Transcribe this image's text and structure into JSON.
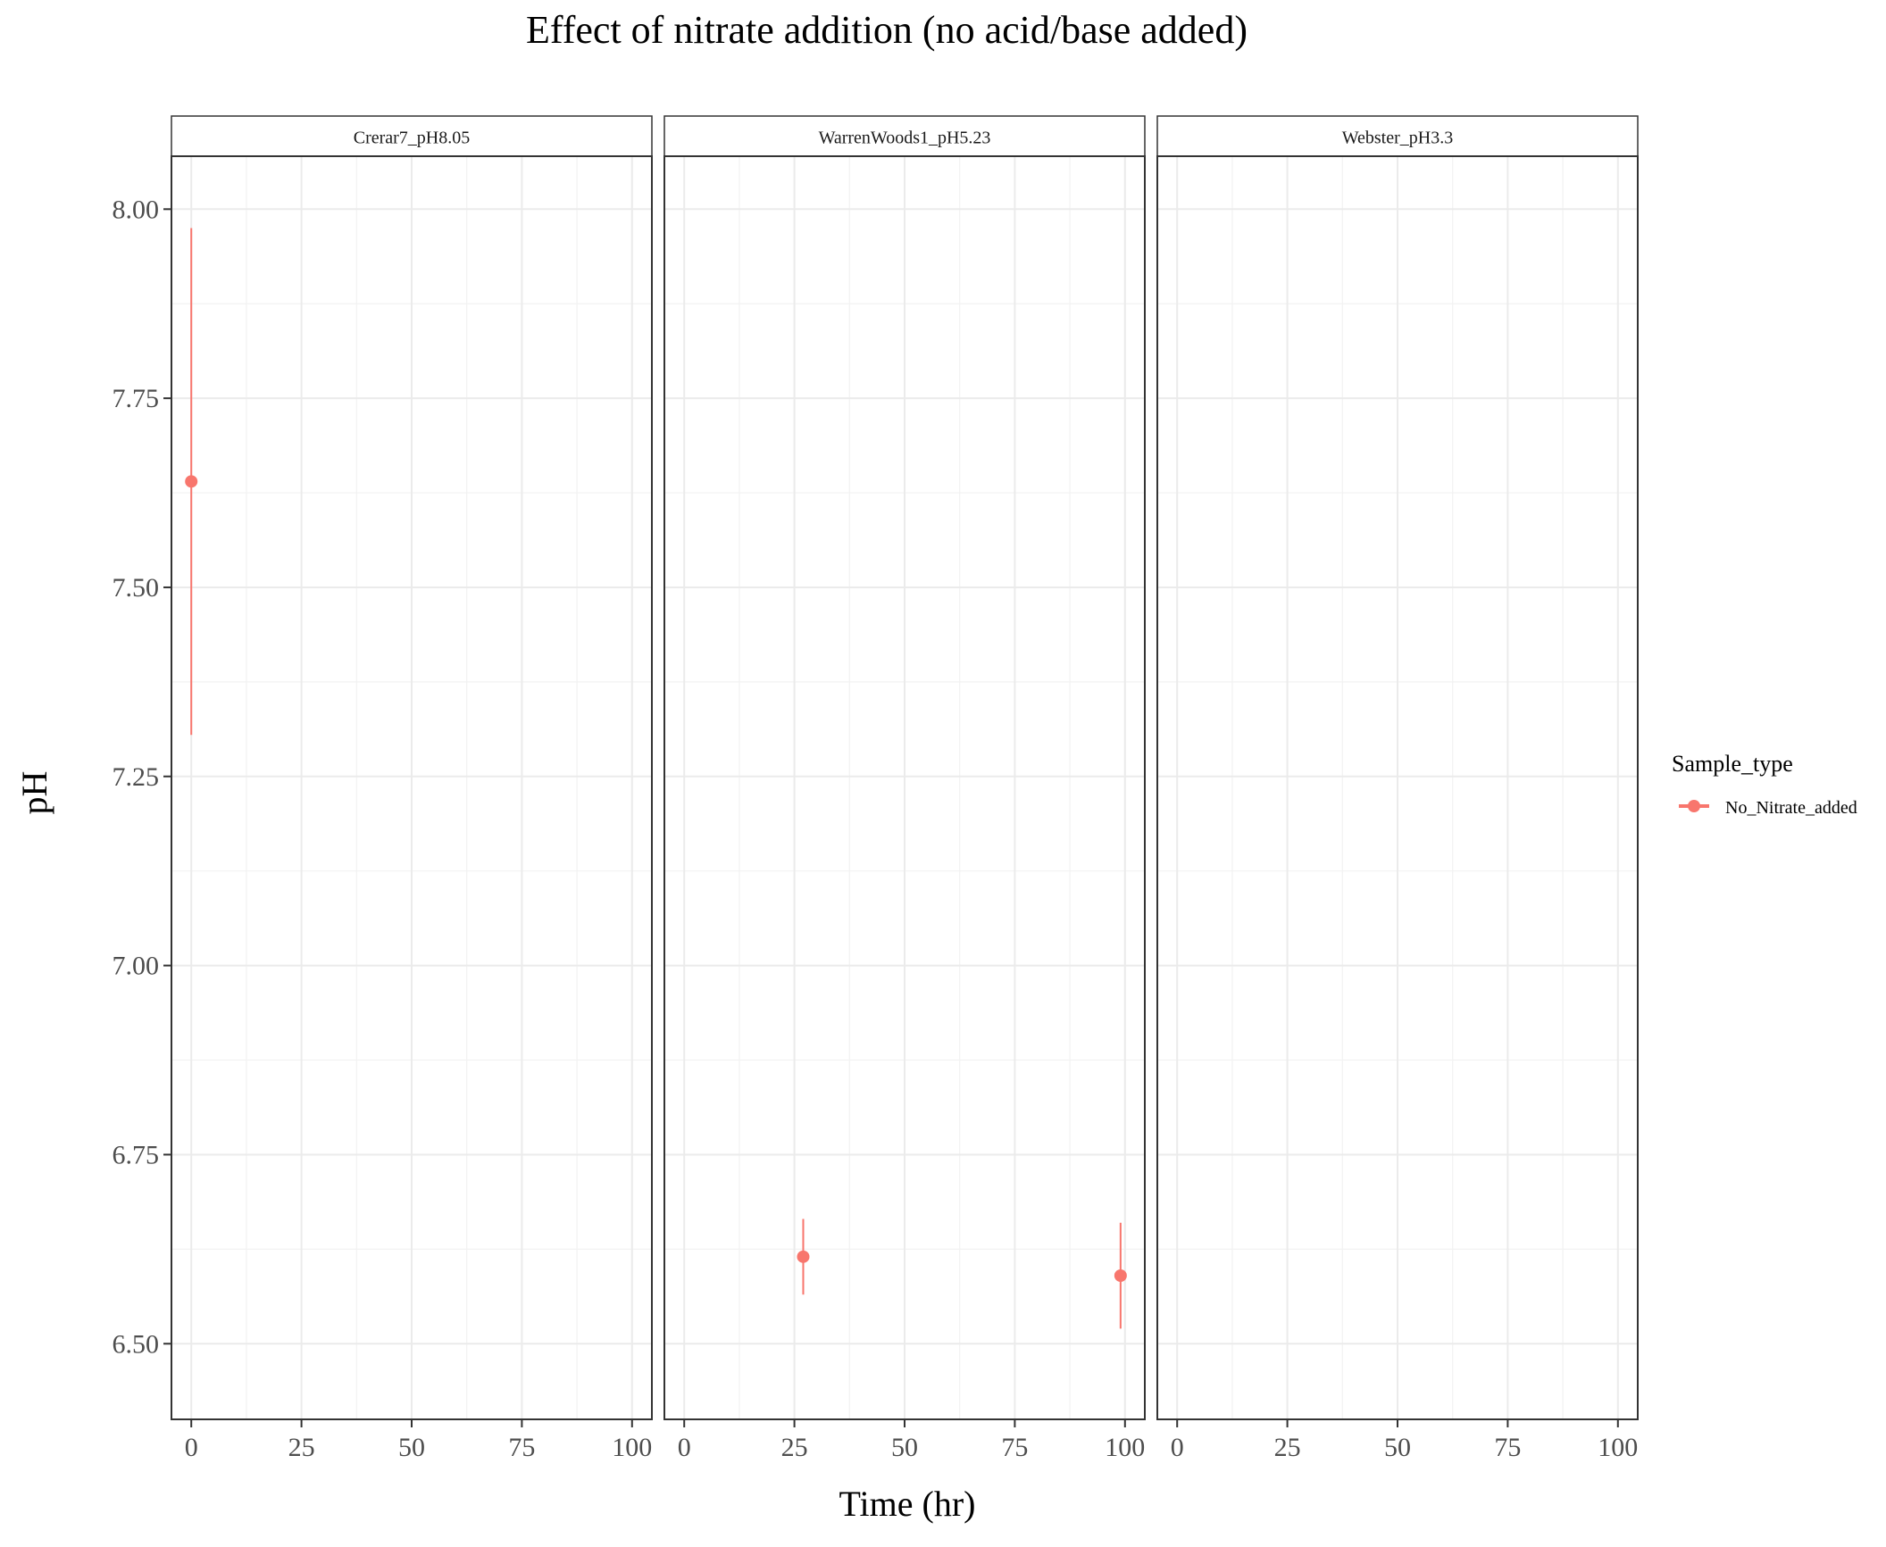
{
  "chart_data": {
    "type": "scatter",
    "title": "Effect of nitrate addition (no acid/base added)",
    "xlabel": "Time (hr)",
    "ylabel": "pH",
    "xlim": [
      -4.5,
      104.5
    ],
    "ylim": [
      6.4,
      8.07
    ],
    "x_ticks": [
      0,
      25,
      50,
      75,
      100
    ],
    "x_tick_labels": [
      "0",
      "25",
      "50",
      "75",
      "100"
    ],
    "y_ticks": [
      6.5,
      6.75,
      7.0,
      7.25,
      7.5,
      7.75,
      8.0
    ],
    "y_tick_labels": [
      "6.50",
      "6.75",
      "7.00",
      "7.25",
      "7.50",
      "7.75",
      "8.00"
    ],
    "grid": true,
    "legend": {
      "title": "Sample_type",
      "position": "right",
      "entries": [
        {
          "label": "No_Nitrate_added",
          "color": "#F8766D"
        }
      ]
    },
    "facets": [
      {
        "label": "Crerar7_pH8.05",
        "series": [
          {
            "name": "No_Nitrate_added",
            "color": "#F8766D",
            "points": [
              {
                "x": 0,
                "y": 7.64,
                "ymin": 7.305,
                "ymax": 7.975
              }
            ]
          }
        ]
      },
      {
        "label": "WarrenWoods1_pH5.23",
        "series": [
          {
            "name": "No_Nitrate_added",
            "color": "#F8766D",
            "points": [
              {
                "x": 27,
                "y": 6.615,
                "ymin": 6.565,
                "ymax": 6.665
              },
              {
                "x": 99,
                "y": 6.59,
                "ymin": 6.52,
                "ymax": 6.66
              }
            ]
          }
        ]
      },
      {
        "label": "Webster_pH3.3",
        "series": [
          {
            "name": "No_Nitrate_added",
            "color": "#F8766D",
            "points": []
          }
        ]
      }
    ]
  }
}
